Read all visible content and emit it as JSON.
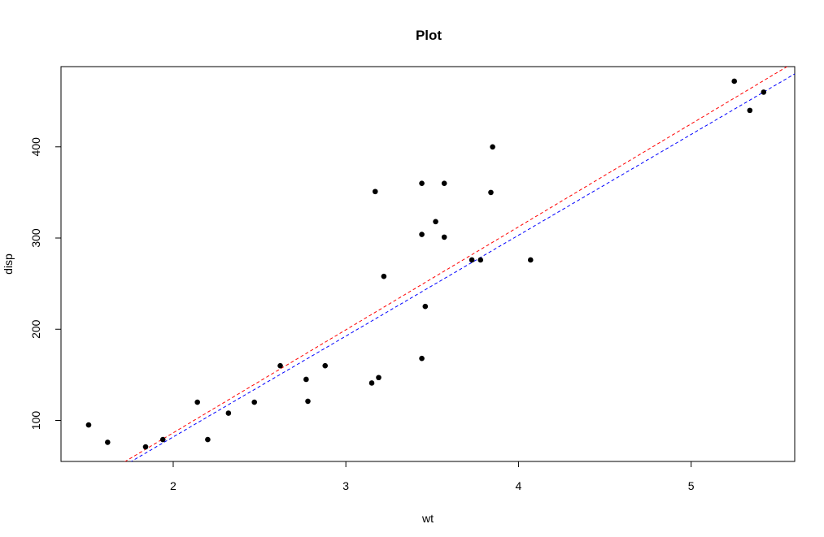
{
  "chart_data": {
    "type": "scatter",
    "title": "Plot",
    "xlabel": "wt",
    "ylabel": "disp",
    "xlim": [
      1.35,
      5.6
    ],
    "ylim": [
      55,
      488
    ],
    "xticks": [
      2,
      3,
      4,
      5
    ],
    "yticks": [
      100,
      200,
      300,
      400
    ],
    "grid": false,
    "point_color": "#000000",
    "points": [
      [
        1.51,
        95
      ],
      [
        1.62,
        76
      ],
      [
        1.84,
        71
      ],
      [
        1.94,
        79
      ],
      [
        2.14,
        120
      ],
      [
        2.2,
        79
      ],
      [
        2.32,
        108
      ],
      [
        2.47,
        120
      ],
      [
        2.62,
        160
      ],
      [
        2.77,
        145
      ],
      [
        2.78,
        121
      ],
      [
        2.88,
        160
      ],
      [
        3.15,
        141
      ],
      [
        3.17,
        351
      ],
      [
        3.19,
        147
      ],
      [
        3.22,
        258
      ],
      [
        3.44,
        360
      ],
      [
        3.44,
        304
      ],
      [
        3.44,
        168
      ],
      [
        3.46,
        225
      ],
      [
        3.52,
        318
      ],
      [
        3.57,
        360
      ],
      [
        3.57,
        301
      ],
      [
        3.73,
        276
      ],
      [
        3.78,
        276
      ],
      [
        3.84,
        350
      ],
      [
        3.85,
        400
      ],
      [
        4.07,
        276
      ],
      [
        5.25,
        472
      ],
      [
        5.34,
        440
      ],
      [
        5.42,
        460
      ]
    ],
    "lines": [
      {
        "style": "dashed",
        "color": "#ff0000",
        "x": [
          1.35,
          5.6
        ],
        "y": [
          13,
          493
        ]
      },
      {
        "style": "dashed",
        "color": "#0000ff",
        "x": [
          1.35,
          5.6
        ],
        "y": [
          10,
          480
        ]
      }
    ]
  }
}
